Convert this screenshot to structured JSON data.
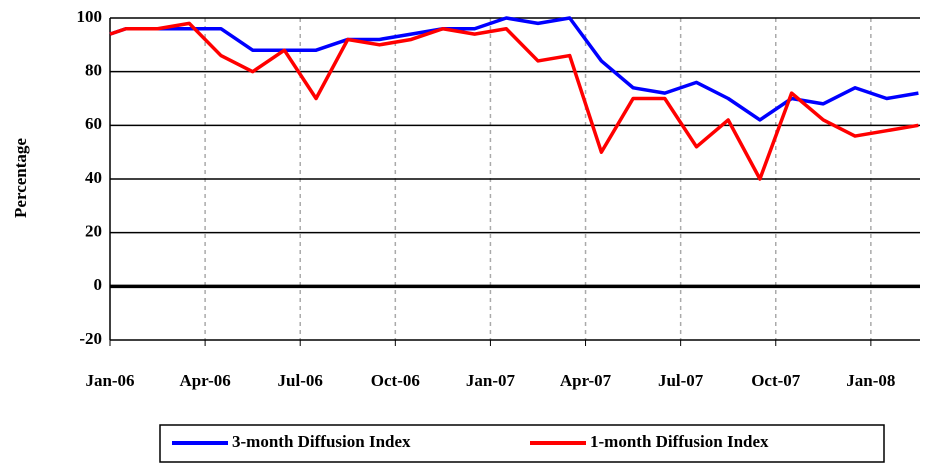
{
  "chart_data": {
    "type": "line",
    "y_label": "Percentage",
    "x": [
      0,
      0.5,
      1.5,
      2.5,
      3.5,
      4.5,
      5.5,
      6.5,
      7.5,
      8.5,
      9.5,
      10.5,
      11.5,
      12.5,
      13.5,
      14.5,
      15.5,
      16.5,
      17.5,
      18.5,
      19.5,
      20.5,
      21.5,
      22.5,
      23.5,
      24.5,
      25.5
    ],
    "series": [
      {
        "name": "3-month Diffusion Index",
        "color": "#0000ff",
        "values": [
          94,
          96,
          96,
          96,
          96,
          88,
          88,
          88,
          92,
          92,
          94,
          96,
          96,
          100,
          98,
          100,
          84,
          74,
          72,
          76,
          70,
          62,
          70,
          68,
          74,
          70,
          72
        ]
      },
      {
        "name": "1-month Diffusion Index",
        "color": "#ff0000",
        "values": [
          94,
          96,
          96,
          98,
          86,
          80,
          88,
          70,
          92,
          90,
          92,
          96,
          94,
          96,
          84,
          86,
          50,
          70,
          70,
          52,
          62,
          40,
          72,
          62,
          56,
          58,
          60
        ]
      }
    ],
    "xlim": [
      0,
      25.55
    ],
    "xticks": [
      {
        "value": 0,
        "label": "Jan-06"
      },
      {
        "value": 3,
        "label": "Apr-06"
      },
      {
        "value": 6,
        "label": "Jul-06"
      },
      {
        "value": 9,
        "label": "Oct-06"
      },
      {
        "value": 12,
        "label": "Jan-07"
      },
      {
        "value": 15,
        "label": "Apr-07"
      },
      {
        "value": 18,
        "label": "Jul-07"
      },
      {
        "value": 21,
        "label": "Oct-07"
      },
      {
        "value": 24,
        "label": "Jan-08"
      }
    ],
    "ylim": [
      -20,
      100
    ],
    "yticks": [
      -20,
      0,
      20,
      40,
      60,
      80,
      100
    ],
    "grid": true,
    "legend": "bottom"
  }
}
